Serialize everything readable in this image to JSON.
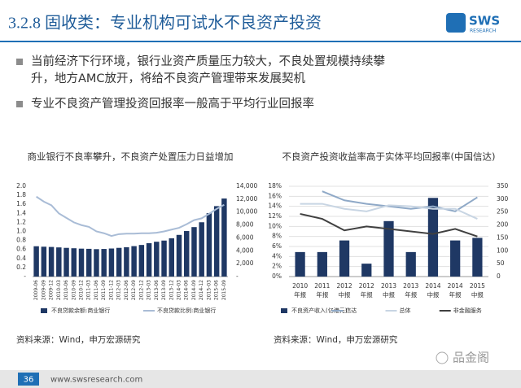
{
  "header": {
    "title": "3.2.8 固收类：专业机构可试水不良资产投资",
    "logo": "SWS",
    "logo_sub": "RESEARCH"
  },
  "bullets": [
    [
      "当前经济下行环境，银行业资产质量压力较大，不良处置规模持续攀",
      "升，地方AMC放开，将给不良资产管理带来发展契机"
    ],
    [
      "专业不良资产管理投资回报率一般高于平均行业回报率"
    ]
  ],
  "chart_data": [
    {
      "type": "bar-line",
      "title": "商业银行不良率攀升，不良资产处置压力日益增加",
      "categories": [
        "2009-06",
        "2009-09",
        "2009-12",
        "2010-03",
        "2010-06",
        "2010-09",
        "2010-12",
        "2011-03",
        "2011-06",
        "2011-09",
        "2011-12",
        "2012-03",
        "2012-06",
        "2012-09",
        "2012-12",
        "2013-03",
        "2013-06",
        "2013-09",
        "2013-12",
        "2014-03",
        "2014-06",
        "2014-09",
        "2014-12",
        "2015-03",
        "2015-06",
        "2015-09"
      ],
      "series": [
        {
          "name": "不良贷款余额:商业银行",
          "kind": "bar",
          "axis": "y2",
          "color": "#1f3864",
          "values": [
            4700,
            4630,
            4590,
            4520,
            4450,
            4390,
            4330,
            4300,
            4250,
            4280,
            4350,
            4450,
            4550,
            4720,
            4900,
            5180,
            5400,
            5580,
            5930,
            6460,
            7060,
            7670,
            8420,
            9830,
            10920,
            12100
          ]
        },
        {
          "name": "不良贷款比例:商业银行",
          "kind": "line",
          "color": "#a9bcd6",
          "values": [
            1.77,
            1.66,
            1.58,
            1.4,
            1.3,
            1.2,
            1.14,
            1.1,
            1.0,
            0.96,
            0.9,
            0.94,
            0.95,
            0.95,
            0.96,
            0.96,
            0.97,
            1.0,
            1.04,
            1.08,
            1.16,
            1.25,
            1.29,
            1.39,
            1.5,
            1.59
          ]
        }
      ],
      "ylim": [
        0,
        2
      ],
      "yticks": [
        {
          "value": 0,
          "label": "-"
        },
        0.2,
        0.4,
        0.6,
        0.8,
        {
          "value": 1,
          "label": "1.0"
        },
        1.2,
        1.4,
        1.6,
        1.8,
        {
          "value": 2,
          "label": "2.0"
        }
      ],
      "y2lim": [
        0,
        14000
      ],
      "y2ticks": [
        {
          "value": 0,
          "label": "-"
        },
        {
          "value": 2000,
          "label": "2,000"
        },
        {
          "value": 4000,
          "label": "4,000"
        },
        {
          "value": 6000,
          "label": "6,000"
        },
        {
          "value": 8000,
          "label": "8,000"
        },
        {
          "value": 10000,
          "label": "10,000"
        },
        {
          "value": 12000,
          "label": "12,000"
        },
        {
          "value": 14000,
          "label": "14,000"
        }
      ],
      "source": "资料来源：Wind，申万宏源研究"
    },
    {
      "type": "bar-line",
      "title": "不良资产投资收益率高于实体平均回报率(中国信达)",
      "categories": [
        [
          "2010",
          "年报"
        ],
        [
          "2011",
          "年报"
        ],
        [
          "2012",
          "中报"
        ],
        [
          "2012",
          "年报"
        ],
        [
          "2013",
          "中报"
        ],
        [
          "2013",
          "年报"
        ],
        [
          "2014",
          "中报"
        ],
        [
          "2014",
          "年报"
        ],
        [
          "2015",
          "中报"
        ]
      ],
      "series": [
        {
          "name": "不良资产收入(亿港元)",
          "kind": "bar",
          "axis": "y2",
          "color": "#1f3864",
          "values": [
            95,
            95,
            140,
            50,
            215,
            95,
            305,
            140,
            150
          ]
        },
        {
          "name": "信达",
          "kind": "line",
          "color": "#8fa9c7",
          "values": [
            null,
            17,
            15.2,
            14.5,
            14,
            13.5,
            14,
            13,
            15.8
          ]
        },
        {
          "name": "总体",
          "kind": "line",
          "color": "#c8d5e3",
          "values": [
            14.5,
            14.5,
            13.5,
            13,
            14.2,
            14,
            13.5,
            13.5,
            11.5
          ]
        },
        {
          "name": "非金融服务",
          "kind": "line",
          "color": "#404040",
          "values": [
            12.5,
            11.5,
            9.2,
            10,
            9.5,
            9,
            8.5,
            9.5,
            8
          ]
        }
      ],
      "ylim": [
        0,
        18
      ],
      "yticks": [
        {
          "value": 0,
          "label": "0%"
        },
        {
          "value": 2,
          "label": "2%"
        },
        {
          "value": 4,
          "label": "4%"
        },
        {
          "value": 6,
          "label": "6%"
        },
        {
          "value": 8,
          "label": "8%"
        },
        {
          "value": 10,
          "label": "10%"
        },
        {
          "value": 12,
          "label": "12%"
        },
        {
          "value": 14,
          "label": "14%"
        },
        {
          "value": 16,
          "label": "16%"
        },
        {
          "value": 18,
          "label": "18%"
        }
      ],
      "y2lim": [
        0,
        350
      ],
      "y2ticks": [
        0,
        50,
        100,
        150,
        200,
        250,
        300,
        350
      ],
      "source": "资料来源：Wind，申万宏源研究"
    }
  ],
  "footer": {
    "page": "36",
    "url": "www.swsresearch.com",
    "watermark": "品金阁"
  }
}
